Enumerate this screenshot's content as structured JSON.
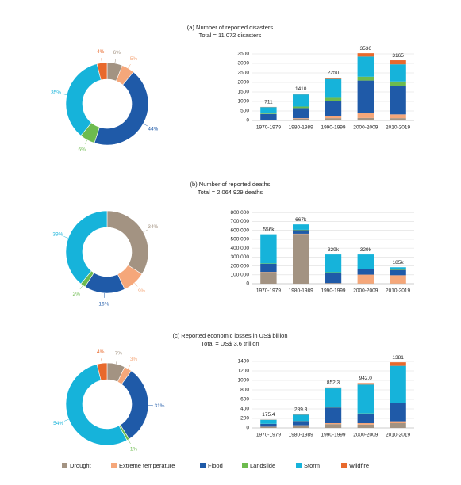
{
  "chart_data": [
    {
      "type": "pie",
      "title": "(a) Number of reported disasters",
      "subtitle": "Total = 11 072 disasters",
      "categories": [
        "Drought",
        "Extreme temperature",
        "Flood",
        "Landslide",
        "Storm",
        "Wildfire"
      ],
      "colors": [
        "#a39382",
        "#f5a77a",
        "#1f5aa8",
        "#6dbb4e",
        "#16b3da",
        "#e8692c"
      ],
      "values": [
        6,
        5,
        44,
        6,
        35,
        4
      ],
      "value_labels": [
        "6%",
        "5%",
        "44%",
        "6%",
        "35%",
        "4%"
      ]
    },
    {
      "type": "bar",
      "stacked": true,
      "categories": [
        "1970-1979",
        "1980-1989",
        "1990-1999",
        "2000-2009",
        "2010-2019"
      ],
      "series": [
        {
          "name": "Drought",
          "color": "#a39382",
          "values": [
            30,
            90,
            120,
            130,
            120
          ]
        },
        {
          "name": "Extreme temperature",
          "color": "#f5a77a",
          "values": [
            10,
            30,
            100,
            270,
            200
          ]
        },
        {
          "name": "Flood",
          "color": "#1f5aa8",
          "values": [
            300,
            530,
            820,
            1700,
            1500
          ]
        },
        {
          "name": "Landslide",
          "color": "#6dbb4e",
          "values": [
            30,
            80,
            150,
            200,
            230
          ]
        },
        {
          "name": "Storm",
          "color": "#16b3da",
          "values": [
            330,
            640,
            990,
            1060,
            900
          ]
        },
        {
          "name": "Wildfire",
          "color": "#e8692c",
          "values": [
            11,
            40,
            70,
            176,
            215
          ]
        }
      ],
      "totals": [
        711,
        1410,
        2250,
        3536,
        3165
      ],
      "ylim": [
        0,
        3500
      ],
      "yticks": [
        0,
        500,
        1000,
        1500,
        2000,
        2500,
        3000,
        3500
      ],
      "grid": true
    },
    {
      "type": "pie",
      "title": "(b) Number of reported deaths",
      "subtitle": "Total =  2 064 929 deaths",
      "categories": [
        "Drought",
        "Extreme temperature",
        "Flood",
        "Landslide",
        "Storm"
      ],
      "colors": [
        "#a39382",
        "#f5a77a",
        "#1f5aa8",
        "#6dbb4e",
        "#16b3da"
      ],
      "values": [
        34,
        9,
        16,
        2,
        39
      ],
      "value_labels": [
        "34%",
        "9%",
        "16%",
        "2%",
        "39%"
      ]
    },
    {
      "type": "bar",
      "stacked": true,
      "categories": [
        "1970-1979",
        "1980-1989",
        "1990-1999",
        "2000-2009",
        "2010-2019"
      ],
      "series": [
        {
          "name": "Drought",
          "color": "#a39382",
          "values": [
            130000,
            560000,
            5000,
            2000,
            2000
          ]
        },
        {
          "name": "Extreme temperature",
          "color": "#f5a77a",
          "values": [
            3000,
            2000,
            2000,
            100000,
            93000
          ]
        },
        {
          "name": "Flood",
          "color": "#1f5aa8",
          "values": [
            90000,
            40000,
            115000,
            60000,
            60000
          ]
        },
        {
          "name": "Landslide",
          "color": "#6dbb4e",
          "values": [
            5000,
            5000,
            7000,
            7000,
            5000
          ]
        },
        {
          "name": "Storm",
          "color": "#16b3da",
          "values": [
            328000,
            60000,
            200000,
            160000,
            25000
          ]
        },
        {
          "name": "Wildfire",
          "color": "#e8692c",
          "values": [
            0,
            0,
            0,
            0,
            0
          ]
        }
      ],
      "totals": [
        556000,
        667000,
        329000,
        329000,
        185000
      ],
      "total_labels": [
        "556k",
        "667k",
        "329k",
        "329k",
        "185k"
      ],
      "ylim": [
        0,
        820000
      ],
      "yticks": [
        0,
        {
          "value": 100000,
          "label": "100 000"
        },
        {
          "value": 200000,
          "label": "200 000"
        },
        {
          "value": 300000,
          "label": "300 000"
        },
        {
          "value": 400000,
          "label": "400 000"
        },
        {
          "value": 500000,
          "label": "500 000"
        },
        {
          "value": 600000,
          "label": "600 000"
        },
        {
          "value": 700000,
          "label": "700 000"
        },
        {
          "value": 800000,
          "label": "800 000"
        }
      ],
      "grid": true
    },
    {
      "type": "pie",
      "title": "(c) Reported economic losses in US$ billion",
      "subtitle": "Total =  US$ 3.6 trillion",
      "categories": [
        "Drought",
        "Extreme temperature",
        "Flood",
        "Landslide",
        "Storm",
        "Wildfire"
      ],
      "colors": [
        "#a39382",
        "#f5a77a",
        "#1f5aa8",
        "#6dbb4e",
        "#16b3da",
        "#e8692c"
      ],
      "values": [
        7,
        3,
        31,
        1,
        54,
        4
      ],
      "value_labels": [
        "7%",
        "3%",
        "31%",
        "1%",
        "54%",
        "4%"
      ]
    },
    {
      "type": "bar",
      "stacked": true,
      "categories": [
        "1970-1979",
        "1980-1989",
        "1990-1999",
        "2000-2009",
        "2010-2019"
      ],
      "series": [
        {
          "name": "Drought",
          "color": "#a39382",
          "values": [
            20,
            45,
            80,
            70,
            100
          ]
        },
        {
          "name": "Extreme temperature",
          "color": "#f5a77a",
          "values": [
            5,
            10,
            20,
            30,
            40
          ]
        },
        {
          "name": "Flood",
          "color": "#1f5aa8",
          "values": [
            60,
            90,
            330,
            200,
            380
          ]
        },
        {
          "name": "Landslide",
          "color": "#6dbb4e",
          "values": [
            2,
            3,
            8,
            5,
            10
          ]
        },
        {
          "name": "Storm",
          "color": "#16b3da",
          "values": [
            85,
            131.3,
            394.3,
            607,
            776
          ]
        },
        {
          "name": "Wildfire",
          "color": "#e8692c",
          "values": [
            3.4,
            10,
            20,
            30,
            75
          ]
        }
      ],
      "totals": [
        175.4,
        289.3,
        852.3,
        942,
        1381
      ],
      "total_labels": [
        "175.4",
        "289.3",
        "852.3",
        "942.0",
        "1381"
      ],
      "ylim": [
        0,
        1400
      ],
      "yticks": [
        0,
        200,
        400,
        600,
        800,
        1000,
        1200,
        1400
      ],
      "grid": true
    }
  ]
}
